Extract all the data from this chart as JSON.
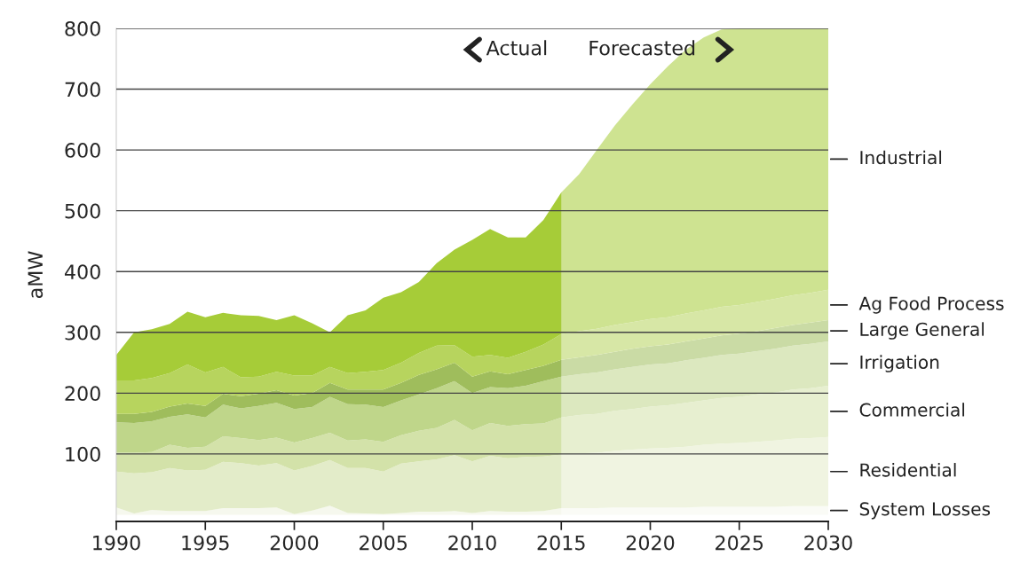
{
  "chart_data": {
    "type": "area",
    "stacked": true,
    "ylabel": "aMW",
    "x": [
      1990,
      1991,
      1992,
      1993,
      1994,
      1995,
      1996,
      1997,
      1998,
      1999,
      2000,
      2001,
      2002,
      2003,
      2004,
      2005,
      2006,
      2007,
      2008,
      2009,
      2010,
      2011,
      2012,
      2013,
      2014,
      2015,
      2016,
      2017,
      2018,
      2019,
      2020,
      2021,
      2022,
      2023,
      2024,
      2025,
      2026,
      2027,
      2028,
      2029,
      2030
    ],
    "series": [
      {
        "name": "System Losses",
        "color": "#f6f8ee",
        "values": [
          12,
          2,
          8,
          6,
          6,
          6,
          11,
          11,
          11,
          12,
          1,
          7,
          15,
          3,
          2,
          1,
          3,
          5,
          5,
          6,
          3,
          6,
          5,
          5,
          6,
          11,
          11,
          11,
          12,
          12,
          12,
          12,
          12,
          13,
          13,
          13,
          13,
          13,
          14,
          14,
          14
        ]
      },
      {
        "name": "Residential",
        "color": "#e3ecc9",
        "values": [
          59,
          66,
          62,
          71,
          67,
          68,
          76,
          74,
          70,
          73,
          72,
          73,
          75,
          74,
          75,
          70,
          81,
          83,
          86,
          92,
          85,
          91,
          88,
          90,
          90,
          88,
          90,
          91,
          93,
          95,
          97,
          98,
          100,
          102,
          104,
          105,
          107,
          109,
          111,
          112,
          114
        ]
      },
      {
        "name": "Commercial",
        "color": "#d3e2a9",
        "values": [
          31,
          34,
          33,
          38,
          37,
          38,
          42,
          41,
          42,
          42,
          46,
          46,
          45,
          45,
          47,
          49,
          47,
          50,
          52,
          58,
          51,
          54,
          53,
          54,
          54,
          61,
          63,
          64,
          66,
          67,
          69,
          70,
          72,
          73,
          75,
          76,
          78,
          79,
          81,
          82,
          84
        ]
      },
      {
        "name": "Irrigation",
        "color": "#bfd68a",
        "values": [
          50,
          49,
          51,
          46,
          55,
          48,
          52,
          49,
          56,
          57,
          55,
          51,
          59,
          60,
          57,
          57,
          57,
          60,
          65,
          64,
          61,
          59,
          62,
          63,
          70,
          67,
          67,
          68,
          68,
          69,
          69,
          69,
          70,
          70,
          71,
          71,
          71,
          72,
          72,
          73,
          73
        ]
      },
      {
        "name": "Large General",
        "color": "#9fbd5c",
        "values": [
          14,
          15,
          15,
          17,
          18,
          19,
          18,
          20,
          20,
          21,
          22,
          23,
          23,
          24,
          25,
          29,
          29,
          32,
          31,
          30,
          27,
          26,
          23,
          26,
          25,
          28,
          28,
          29,
          29,
          30,
          30,
          31,
          31,
          32,
          32,
          33,
          33,
          34,
          34,
          35,
          35
        ]
      },
      {
        "name": "Ag Food Process",
        "color": "#b7d45e",
        "values": [
          55,
          55,
          56,
          55,
          64,
          55,
          44,
          31,
          28,
          30,
          33,
          29,
          26,
          27,
          29,
          32,
          33,
          36,
          39,
          29,
          33,
          27,
          27,
          30,
          35,
          42,
          43,
          43,
          44,
          44,
          45,
          45,
          46,
          46,
          47,
          47,
          48,
          48,
          49,
          49,
          50
        ]
      },
      {
        "name": "Industrial",
        "color": "#a6cc38",
        "values": [
          42,
          79,
          80,
          81,
          87,
          91,
          89,
          102,
          100,
          85,
          99,
          86,
          57,
          95,
          101,
          119,
          116,
          117,
          136,
          157,
          192,
          207,
          198,
          188,
          205,
          233,
          258,
          294,
          328,
          358,
          386,
          413,
          434,
          449,
          456,
          455,
          450,
          445,
          439,
          435,
          430
        ]
      }
    ],
    "xlim": [
      1990,
      2030
    ],
    "xticks": [
      1990,
      1995,
      2000,
      2005,
      2010,
      2015,
      2020,
      2025,
      2030
    ],
    "ylim": [
      -11,
      800
    ],
    "yticks": [
      100,
      200,
      300,
      400,
      500,
      600,
      700,
      800
    ],
    "grid": "y",
    "legend": false,
    "bands": [
      {
        "axis": "x",
        "from": 2015,
        "to": 2030,
        "color": "#ffffff"
      }
    ],
    "annotations": [
      "Actual",
      "Forecasted"
    ]
  }
}
